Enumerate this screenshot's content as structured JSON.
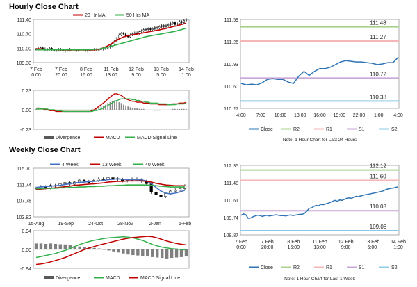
{
  "sections": {
    "hourly_title": "Hourly Close Chart",
    "weekly_title": "Weekly Close Chart"
  },
  "colors": {
    "close": "#2e74b5",
    "r2": "#a9d18e",
    "r1": "#f4b6b6",
    "s1": "#c6a7d6",
    "s2": "#8ec9e8",
    "ma_short": "#c00000",
    "ma_long": "#33b04a",
    "ma_4w": "#4472c4",
    "divergence": "#595959",
    "macd": "#c00000",
    "signal": "#33b04a"
  },
  "chart_data": [
    {
      "id": "hourly-candles",
      "type": "line",
      "legend": [
        "20 Hr MA",
        "50 Hrs MA"
      ],
      "x_ticks": [
        "7 Feb\n0:00",
        "7 Feb\n20:00",
        "8 Feb\n16:00",
        "11 Feb\n13:00",
        "12 Feb\n9:00",
        "13 Feb\n5:00",
        "14 Feb\n1:00"
      ],
      "y_ticks": [
        "111.40",
        "110.70",
        "110.00",
        "109.30"
      ],
      "ylim": [
        109.3,
        111.4
      ],
      "close": [
        109.95,
        109.98,
        110.02,
        109.97,
        109.9,
        109.95,
        110.0,
        109.92,
        109.88,
        109.9,
        109.95,
        109.93,
        109.85,
        109.92,
        109.9,
        109.95,
        109.93,
        109.9,
        109.88,
        109.92,
        109.95,
        109.9,
        109.88,
        109.85,
        109.9,
        109.92,
        109.95,
        109.9,
        109.93,
        109.95,
        109.98,
        110.0,
        110.05,
        110.1,
        110.2,
        110.35,
        110.5,
        110.65,
        110.72,
        110.7,
        110.6,
        110.55,
        110.65,
        110.7,
        110.75,
        110.7,
        110.8,
        110.85,
        110.9,
        110.92,
        110.95,
        110.9,
        110.95,
        111.0,
        110.98,
        111.05,
        111.1,
        111.05,
        111.1,
        111.15,
        111.2,
        111.25,
        111.15,
        111.2,
        111.3,
        111.25,
        111.35,
        111.4
      ],
      "ma20": [
        109.97,
        109.97,
        109.97,
        109.96,
        109.95,
        109.94,
        109.94,
        109.93,
        109.92,
        109.92,
        109.91,
        109.91,
        109.91,
        109.91,
        109.91,
        109.9,
        109.91,
        109.91,
        109.91,
        109.91,
        109.91,
        109.91,
        109.91,
        109.91,
        109.91,
        109.91,
        109.92,
        109.93,
        109.95,
        109.98,
        110.02,
        110.07,
        110.12,
        110.18,
        110.25,
        110.32,
        110.39,
        110.45,
        110.5,
        110.55,
        110.58,
        110.61,
        110.63,
        110.65,
        110.67,
        110.69,
        110.71,
        110.73,
        110.75,
        110.77,
        110.79,
        110.81,
        110.83,
        110.85,
        110.87,
        110.89,
        110.92,
        110.94,
        110.96,
        110.99,
        111.02,
        111.05,
        111.07,
        111.1,
        111.13,
        111.16,
        111.19,
        111.22
      ],
      "ma50": [
        109.92,
        109.92,
        109.92,
        109.92,
        109.92,
        109.92,
        109.92,
        109.92,
        109.92,
        109.92,
        109.92,
        109.92,
        109.92,
        109.92,
        109.92,
        109.92,
        109.92,
        109.92,
        109.92,
        109.92,
        109.92,
        109.92,
        109.92,
        109.92,
        109.93,
        109.93,
        109.94,
        109.95,
        109.96,
        109.98,
        110.0,
        110.02,
        110.05,
        110.08,
        110.11,
        110.14,
        110.17,
        110.2,
        110.23,
        110.26,
        110.29,
        110.32,
        110.35,
        110.38,
        110.41,
        110.44,
        110.47,
        110.5,
        110.53,
        110.56,
        110.58,
        110.6,
        110.62,
        110.64,
        110.66,
        110.68,
        110.7,
        110.72,
        110.74,
        110.76,
        110.78,
        110.8,
        110.82,
        110.85,
        110.88,
        110.91,
        110.94,
        110.98
      ]
    },
    {
      "id": "hourly-macd",
      "type": "bar",
      "legend": [
        "Divergence",
        "MACD",
        "MACD Signal Line"
      ],
      "y_ticks": [
        "0.23",
        "0.00",
        "-0.23"
      ],
      "ylim": [
        -0.23,
        0.23
      ],
      "divergence": [
        0.01,
        0.01,
        0.0,
        0.0,
        -0.01,
        -0.01,
        -0.01,
        0.0,
        0.0,
        0.0,
        0.0,
        0.0,
        -0.01,
        -0.01,
        0.0,
        0.0,
        0.0,
        0.0,
        0.0,
        0.0,
        0.0,
        0.0,
        0.0,
        0.0,
        0.0,
        0.01,
        0.01,
        0.02,
        0.03,
        0.04,
        0.05,
        0.06,
        0.08,
        0.09,
        0.1,
        0.11,
        0.1,
        0.09,
        0.08,
        0.06,
        0.05,
        0.04,
        0.03,
        0.02,
        0.02,
        0.02,
        0.01,
        0.01,
        0.01,
        0.0,
        0.0,
        0.0,
        0.0,
        -0.01,
        -0.01,
        -0.01,
        0.0,
        0.0,
        0.0,
        0.0,
        0.0,
        0.01,
        0.01,
        0.01,
        0.01,
        0.01,
        0.01,
        0.01
      ],
      "macd": [
        0.02,
        0.02,
        0.02,
        0.01,
        0.0,
        0.0,
        -0.01,
        -0.01,
        -0.01,
        -0.02,
        -0.02,
        -0.02,
        -0.02,
        -0.02,
        -0.02,
        -0.02,
        -0.02,
        -0.02,
        -0.02,
        -0.02,
        -0.02,
        -0.02,
        -0.02,
        -0.02,
        -0.02,
        -0.01,
        0.0,
        0.02,
        0.04,
        0.06,
        0.08,
        0.1,
        0.13,
        0.15,
        0.17,
        0.19,
        0.19,
        0.18,
        0.17,
        0.15,
        0.13,
        0.12,
        0.11,
        0.1,
        0.1,
        0.09,
        0.09,
        0.09,
        0.08,
        0.08,
        0.08,
        0.07,
        0.07,
        0.07,
        0.07,
        0.06,
        0.06,
        0.06,
        0.06,
        0.06,
        0.06,
        0.07,
        0.07,
        0.07,
        0.08,
        0.08,
        0.08,
        0.09
      ],
      "signal": [
        0.01,
        0.01,
        0.01,
        0.01,
        0.01,
        0.01,
        0.0,
        0.0,
        0.0,
        -0.01,
        -0.01,
        -0.01,
        -0.02,
        -0.02,
        -0.02,
        -0.02,
        -0.02,
        -0.02,
        -0.02,
        -0.02,
        -0.02,
        -0.02,
        -0.02,
        -0.02,
        -0.02,
        -0.02,
        -0.01,
        -0.01,
        0.0,
        0.01,
        0.02,
        0.04,
        0.05,
        0.07,
        0.08,
        0.1,
        0.11,
        0.12,
        0.13,
        0.13,
        0.13,
        0.13,
        0.13,
        0.12,
        0.12,
        0.11,
        0.11,
        0.1,
        0.1,
        0.09,
        0.09,
        0.08,
        0.08,
        0.08,
        0.08,
        0.07,
        0.07,
        0.07,
        0.07,
        0.06,
        0.06,
        0.06,
        0.06,
        0.07,
        0.07,
        0.07,
        0.07,
        0.08
      ]
    },
    {
      "id": "hourly-levels",
      "type": "line",
      "x_ticks": [
        "4:00",
        "7:00",
        "10:00",
        "13:00",
        "16:00",
        "19:00",
        "22:00",
        "1:00",
        "4:00"
      ],
      "y_ticks": [
        "111.59",
        "111.26",
        "110.93",
        "110.60",
        "110.27"
      ],
      "ylim": [
        110.27,
        111.59
      ],
      "close": [
        110.64,
        110.62,
        110.63,
        110.62,
        110.65,
        110.7,
        110.71,
        110.7,
        110.7,
        110.66,
        110.64,
        110.75,
        110.82,
        110.76,
        110.82,
        110.86,
        110.86,
        110.88,
        110.92,
        110.96,
        110.98,
        110.97,
        110.96,
        110.96,
        110.95,
        110.94,
        110.92,
        110.93,
        110.95,
        110.95,
        111.03
      ],
      "levels": [
        {
          "name": "R2",
          "value": 111.48,
          "label": "111.48"
        },
        {
          "name": "R1",
          "value": 111.27,
          "label": "111.27"
        },
        {
          "name": "S1",
          "value": 110.72,
          "label": "110.72"
        },
        {
          "name": "S2",
          "value": 110.38,
          "label": "110.38"
        }
      ],
      "legend": [
        "Close",
        "R2",
        "R1",
        "S1",
        "S2"
      ],
      "note": "Note: 1 Hour Chart for Last 24 Hours"
    },
    {
      "id": "weekly-candles",
      "type": "line",
      "legend": [
        "4 Week",
        "13 Week",
        "40 Week"
      ],
      "x_ticks": [
        "15-Aug",
        "19-Sep",
        "24-Oct",
        "28-Nov",
        "2-Jan",
        "6-Feb"
      ],
      "y_ticks": [
        "115.70",
        "111.74",
        "107.78",
        "103.82"
      ],
      "ylim": [
        103.82,
        115.7
      ],
      "close": [
        110.8,
        111.2,
        110.9,
        111.5,
        111.3,
        111.9,
        112.2,
        111.8,
        112.3,
        112.8,
        112.5,
        112.1,
        112.7,
        113.1,
        112.9,
        113.4,
        113.2,
        113.0,
        112.6,
        112.8,
        113.1,
        112.9,
        112.5,
        111.9,
        109.8,
        109.2,
        108.8,
        109.5,
        110.1,
        110.4,
        110.7,
        111.4
      ],
      "wk4": [
        111.0,
        111.1,
        111.2,
        111.3,
        111.4,
        111.5,
        111.7,
        111.9,
        112.1,
        112.2,
        112.3,
        112.4,
        112.5,
        112.6,
        112.7,
        112.9,
        113.0,
        113.1,
        113.0,
        112.9,
        112.9,
        112.9,
        112.8,
        112.6,
        111.9,
        111.0,
        110.1,
        109.6,
        109.4,
        109.6,
        109.9,
        110.3
      ],
      "wk13": [
        110.5,
        110.6,
        110.7,
        110.8,
        110.9,
        111.0,
        111.2,
        111.3,
        111.5,
        111.6,
        111.7,
        111.8,
        111.9,
        112.0,
        112.1,
        112.3,
        112.4,
        112.5,
        112.5,
        112.6,
        112.6,
        112.6,
        112.6,
        112.5,
        112.3,
        112.0,
        111.8,
        111.6,
        111.5,
        111.4,
        111.4,
        111.4
      ],
      "wk40": [
        110.7,
        110.7,
        110.8,
        110.8,
        110.8,
        110.9,
        110.9,
        111.0,
        111.0,
        111.1,
        111.1,
        111.2,
        111.2,
        111.3,
        111.3,
        111.4,
        111.4,
        111.5,
        111.5,
        111.6,
        111.6,
        111.6,
        111.6,
        111.6,
        111.5,
        111.4,
        111.3,
        111.2,
        111.1,
        111.1,
        111.1,
        111.1
      ]
    },
    {
      "id": "weekly-macd",
      "type": "bar",
      "legend": [
        "Divergence",
        "MACD",
        "MACD Signal Line"
      ],
      "y_ticks": [
        "0.94",
        "0.00",
        "-0.94"
      ],
      "ylim": [
        -0.94,
        0.94
      ],
      "divergence": [
        0.3,
        0.3,
        0.28,
        0.3,
        0.28,
        0.26,
        0.25,
        0.22,
        0.18,
        0.15,
        0.12,
        0.1,
        0.08,
        0.05,
        0.0,
        -0.05,
        -0.1,
        -0.15,
        -0.2,
        -0.25,
        -0.28,
        -0.3,
        -0.32,
        -0.35,
        -0.38,
        -0.4,
        -0.42,
        -0.45,
        -0.42,
        -0.4,
        -0.38,
        -0.35
      ],
      "macd": [
        -0.4,
        -0.35,
        -0.3,
        -0.25,
        -0.2,
        -0.12,
        -0.05,
        0.05,
        0.15,
        0.25,
        0.33,
        0.4,
        0.46,
        0.5,
        0.55,
        0.58,
        0.6,
        0.62,
        0.64,
        0.62,
        0.58,
        0.52,
        0.45,
        0.35,
        0.25,
        0.18,
        0.12,
        0.08,
        0.04,
        0.02,
        0.0,
        -0.02
      ],
      "signal": [
        -0.75,
        -0.72,
        -0.68,
        -0.62,
        -0.55,
        -0.48,
        -0.4,
        -0.3,
        -0.2,
        -0.1,
        0.0,
        0.08,
        0.15,
        0.22,
        0.28,
        0.34,
        0.4,
        0.46,
        0.52,
        0.56,
        0.6,
        0.62,
        0.64,
        0.66,
        0.64,
        0.58,
        0.5,
        0.42,
        0.36,
        0.3,
        0.26,
        0.23
      ]
    },
    {
      "id": "weekly-levels",
      "type": "line",
      "x_ticks": [
        "7 Feb\n0:00",
        "7 Feb\n20:00",
        "8 Feb\n16:00",
        "11 Feb\n13:00",
        "12 Feb\n9:00",
        "13 Feb\n5:00",
        "14 Feb\n1:00"
      ],
      "y_ticks": [
        "112.35",
        "111.48",
        "110.61",
        "109.74",
        "108.87"
      ],
      "ylim": [
        108.87,
        112.35
      ],
      "close": [
        109.85,
        109.92,
        109.88,
        109.7,
        109.72,
        109.78,
        109.82,
        109.86,
        109.84,
        109.8,
        109.83,
        109.85,
        109.82,
        109.84,
        109.86,
        109.88,
        109.85,
        109.83,
        109.84,
        109.82,
        109.85,
        109.87,
        109.84,
        109.86,
        109.88,
        109.9,
        109.9,
        109.95,
        110.05,
        110.2,
        110.22,
        110.3,
        110.35,
        110.32,
        110.4,
        110.38,
        110.42,
        110.45,
        110.5,
        110.55,
        110.6,
        110.55,
        110.62,
        110.6,
        110.65,
        110.7,
        110.72,
        110.7,
        110.75,
        110.8,
        110.78,
        110.82,
        110.85,
        110.88,
        110.9,
        110.92,
        110.95,
        110.97,
        111.0,
        111.02,
        111.05,
        111.1,
        111.15,
        111.18,
        111.2,
        111.22,
        111.25,
        111.28
      ],
      "levels": [
        {
          "name": "R2",
          "value": 112.12,
          "label": "112.12"
        },
        {
          "name": "R1",
          "value": 111.6,
          "label": "111.60"
        },
        {
          "name": "S1",
          "value": 110.08,
          "label": "110.08"
        },
        {
          "name": "S2",
          "value": 109.08,
          "label": "109.08"
        }
      ],
      "legend": [
        "Close",
        "R2",
        "R1",
        "S1",
        "S2"
      ],
      "note": "Note: 1 Hour Chart for Last 1 Week"
    }
  ]
}
